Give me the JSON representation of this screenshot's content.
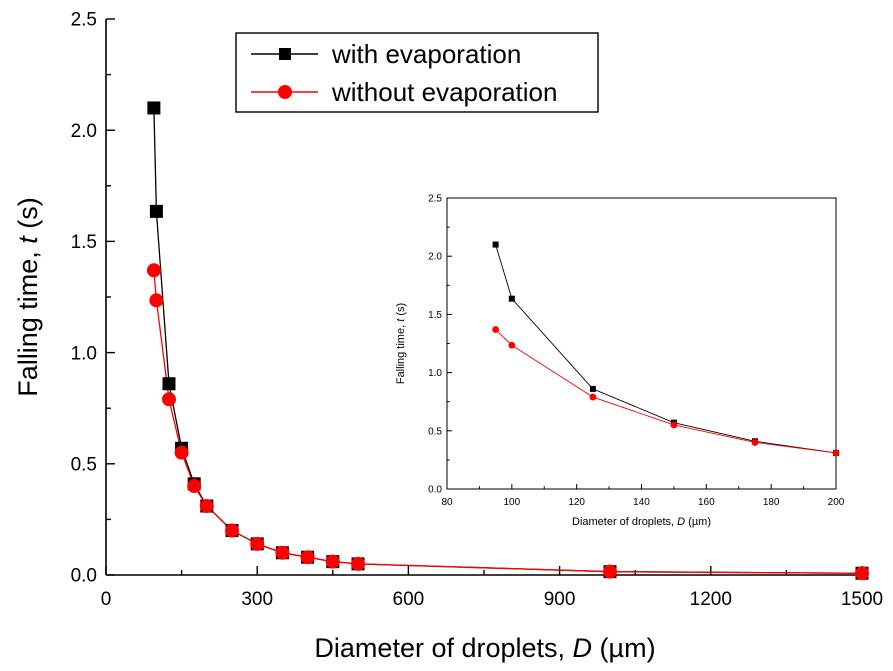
{
  "chart_data": [
    {
      "type": "line",
      "ylabel": "Falling time, t (s)",
      "xlabel": "Diameter of droplets, D (µm)",
      "xlim": [
        0,
        1500
      ],
      "ylim": [
        0,
        2.5
      ],
      "xticks": [
        0,
        300,
        600,
        900,
        1200,
        1500
      ],
      "yticks": [
        0.0,
        0.5,
        1.0,
        1.5,
        2.0,
        2.5
      ],
      "legend_position": "top-center",
      "grid": false,
      "series": [
        {
          "name": "with evaporation",
          "color": "#000000",
          "marker": "square",
          "x": [
            95,
            100,
            125,
            150,
            175,
            200,
            250,
            300,
            350,
            400,
            450,
            500,
            1000,
            1500
          ],
          "y": [
            2.1,
            1.635,
            0.86,
            0.57,
            0.41,
            0.31,
            0.2,
            0.14,
            0.1,
            0.08,
            0.06,
            0.05,
            0.015,
            0.008
          ]
        },
        {
          "name": "without evaporation",
          "color": "#ff0000",
          "marker": "circle",
          "x": [
            95,
            100,
            125,
            150,
            175,
            200,
            250,
            300,
            350,
            400,
            450,
            500,
            1000,
            1500
          ],
          "y": [
            1.37,
            1.235,
            0.79,
            0.55,
            0.4,
            0.31,
            0.2,
            0.14,
            0.1,
            0.08,
            0.06,
            0.05,
            0.015,
            0.008
          ]
        }
      ]
    },
    {
      "type": "line",
      "ylabel": "Falling time, t (s)",
      "xlabel": "Diameter of droplets, D (µm)",
      "xlim": [
        80,
        200
      ],
      "ylim": [
        0,
        2.5
      ],
      "xticks": [
        80,
        100,
        120,
        140,
        160,
        180,
        200
      ],
      "yticks": [
        0.0,
        0.5,
        1.0,
        1.5,
        2.0,
        2.5
      ],
      "grid": false,
      "series": [
        {
          "name": "with evaporation",
          "color": "#000000",
          "marker": "square",
          "x": [
            95,
            100,
            125,
            150,
            175,
            200
          ],
          "y": [
            2.1,
            1.635,
            0.86,
            0.57,
            0.41,
            0.31
          ]
        },
        {
          "name": "without evaporation",
          "color": "#ff0000",
          "marker": "circle",
          "x": [
            95,
            100,
            125,
            150,
            175,
            200
          ],
          "y": [
            1.37,
            1.235,
            0.79,
            0.55,
            0.4,
            0.31
          ]
        }
      ]
    }
  ],
  "labels": {
    "main_ylabel_prefix": "Falling time, ",
    "main_ylabel_var": "t",
    "main_ylabel_suffix": " (s)",
    "main_xlabel_prefix": "Diameter of droplets, ",
    "main_xlabel_var": "D",
    "main_xlabel_suffix": " (µm)",
    "legend_1": "with evaporation",
    "legend_2": "without evaporation"
  }
}
